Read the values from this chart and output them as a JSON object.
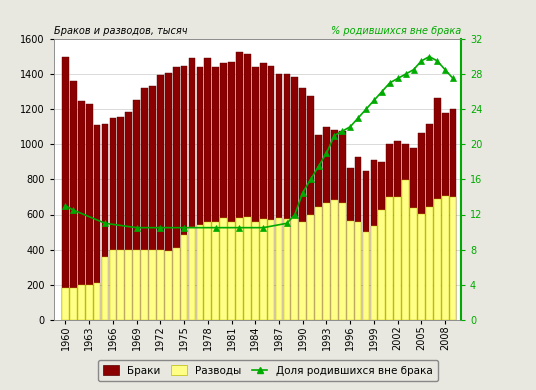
{
  "years": [
    1960,
    1961,
    1962,
    1963,
    1964,
    1965,
    1966,
    1967,
    1968,
    1969,
    1970,
    1971,
    1972,
    1973,
    1974,
    1975,
    1976,
    1977,
    1978,
    1979,
    1980,
    1981,
    1982,
    1983,
    1984,
    1985,
    1986,
    1987,
    1988,
    1989,
    1990,
    1991,
    1992,
    1993,
    1994,
    1995,
    1996,
    1997,
    1998,
    1999,
    2000,
    2001,
    2002,
    2003,
    2004,
    2005,
    2006,
    2007,
    2008,
    2009
  ],
  "marriages": [
    1499,
    1360,
    1248,
    1228,
    1108,
    1113,
    1149,
    1157,
    1186,
    1252,
    1319,
    1330,
    1395,
    1408,
    1443,
    1444,
    1494,
    1439,
    1490,
    1442,
    1465,
    1471,
    1527,
    1515,
    1441,
    1461,
    1445,
    1398,
    1398,
    1385,
    1320,
    1278,
    1054,
    1101,
    1081,
    1076,
    867,
    929,
    849,
    912,
    897,
    1002,
    1020,
    1002,
    979,
    1066,
    1114,
    1262,
    1180,
    1199
  ],
  "divorces": [
    183,
    184,
    196,
    199,
    211,
    360,
    396,
    397,
    400,
    399,
    397,
    395,
    399,
    394,
    411,
    483,
    529,
    539,
    556,
    558,
    581,
    558,
    578,
    583,
    556,
    573,
    568,
    578,
    573,
    580,
    560,
    597,
    640,
    664,
    681,
    666,
    562,
    555,
    501,
    532,
    628,
    700,
    701,
    798,
    635,
    604,
    641,
    686,
    703,
    699
  ],
  "owedlock_years": [
    1960,
    1961,
    1965,
    1969,
    1972,
    1975,
    1979,
    1982,
    1985,
    1988,
    1989,
    1990,
    1991,
    1992,
    1993,
    1994,
    1995,
    1996,
    1997,
    1998,
    1999,
    2000,
    2001,
    2002,
    2003,
    2004,
    2005,
    2006,
    2007,
    2008,
    2009
  ],
  "owedlock_vals": [
    13.0,
    12.5,
    11.0,
    10.5,
    10.5,
    10.5,
    10.5,
    10.5,
    10.5,
    11.0,
    12.0,
    14.5,
    16.0,
    17.5,
    19.0,
    21.0,
    21.5,
    22.0,
    23.0,
    24.0,
    25.0,
    26.0,
    27.0,
    27.5,
    28.0,
    28.5,
    29.5,
    30.0,
    29.5,
    28.5,
    27.5
  ],
  "bar_marriage_color": "#8B0000",
  "bar_divorce_color": "#FFFF88",
  "bar_marriage_edge": "#5a0000",
  "bar_divorce_edge": "#BBBB00",
  "line_color": "#00AA00",
  "ylabel_left": "Браков и разводов, тысяч",
  "ylabel_right": "% родившихся вне брака",
  "legend_marriages": "Браки",
  "legend_divorces": "Разводы",
  "legend_owedlock": "Доля родившихся вне брака",
  "ylim_left": [
    0,
    1600
  ],
  "ylim_right": [
    0,
    32
  ],
  "yticks_left": [
    0,
    200,
    400,
    600,
    800,
    1000,
    1200,
    1400,
    1600
  ],
  "yticks_right": [
    0,
    4,
    8,
    12,
    16,
    20,
    24,
    28,
    32
  ],
  "xtick_years": [
    1960,
    1963,
    1966,
    1969,
    1972,
    1975,
    1978,
    1981,
    1984,
    1987,
    1990,
    1993,
    1996,
    1999,
    2002,
    2005,
    2008
  ],
  "background_color": "#e8e8e0",
  "plot_bg_color": "#ffffff",
  "grid_color": "#cccccc"
}
